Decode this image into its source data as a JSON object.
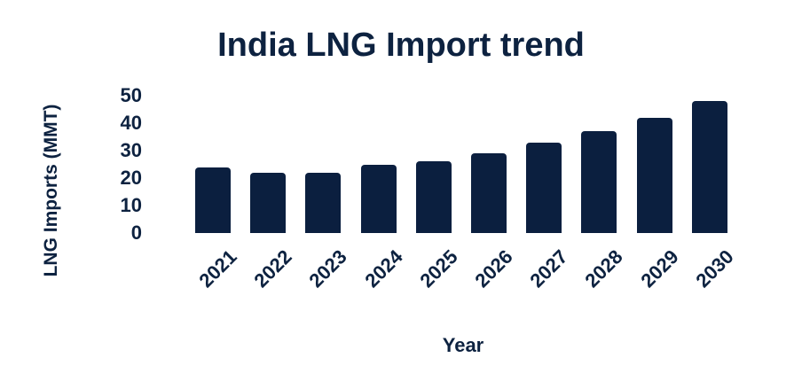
{
  "chart_data": {
    "type": "bar",
    "title": "India LNG Import trend",
    "xlabel": "Year",
    "ylabel": "LNG Imports (MMT)",
    "categories": [
      "2021",
      "2022",
      "2023",
      "2024",
      "2025",
      "2026",
      "2027",
      "2028",
      "2029",
      "2030"
    ],
    "values": [
      24,
      22,
      22,
      25,
      26,
      29,
      33,
      37,
      42,
      48
    ],
    "ylim": [
      0,
      50
    ],
    "yticks": [
      "0",
      "10",
      "20",
      "30",
      "40",
      "50"
    ],
    "grid": false,
    "legend": null,
    "bar_color": "#0b1f3f"
  }
}
